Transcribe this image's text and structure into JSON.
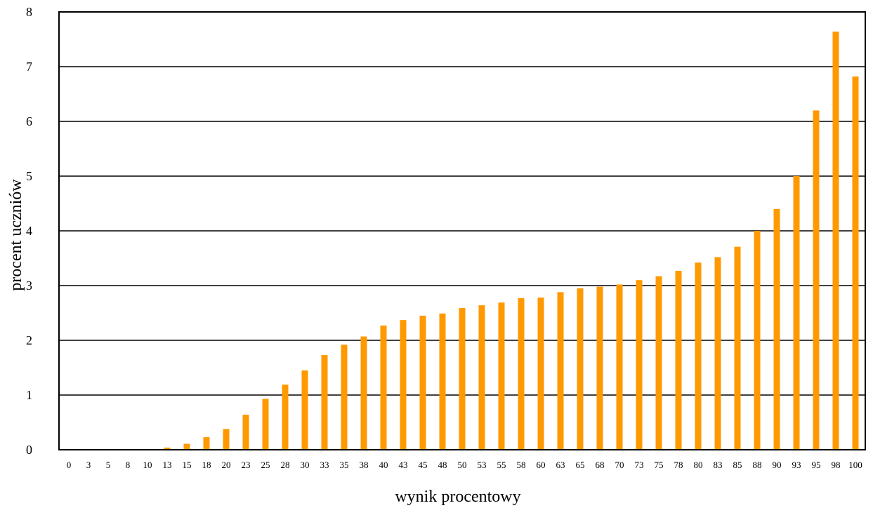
{
  "chart_data": {
    "type": "bar",
    "xlabel": "wynik procentowy",
    "ylabel": "procent uczniów",
    "ylim": [
      0,
      8
    ],
    "yticks": [
      "0",
      "1",
      "2",
      "3",
      "4",
      "5",
      "6",
      "7",
      "8"
    ],
    "grid": true,
    "bar_color": "#FF9900",
    "categories": [
      "0",
      "3",
      "5",
      "8",
      "10",
      "13",
      "15",
      "18",
      "20",
      "23",
      "25",
      "28",
      "30",
      "33",
      "35",
      "38",
      "40",
      "43",
      "45",
      "48",
      "50",
      "53",
      "55",
      "58",
      "60",
      "63",
      "65",
      "68",
      "70",
      "73",
      "75",
      "78",
      "80",
      "83",
      "85",
      "88",
      "90",
      "93",
      "95",
      "98",
      "100"
    ],
    "values": [
      0,
      0,
      0,
      0,
      0.01,
      0.04,
      0.11,
      0.23,
      0.38,
      0.64,
      0.93,
      1.19,
      1.45,
      1.73,
      1.92,
      2.07,
      2.27,
      2.37,
      2.45,
      2.49,
      2.59,
      2.64,
      2.69,
      2.77,
      2.78,
      2.88,
      2.95,
      2.98,
      3.02,
      3.1,
      3.17,
      3.27,
      3.42,
      3.52,
      3.71,
      4.0,
      4.4,
      5.0,
      6.2,
      7.64,
      6.82
    ]
  }
}
